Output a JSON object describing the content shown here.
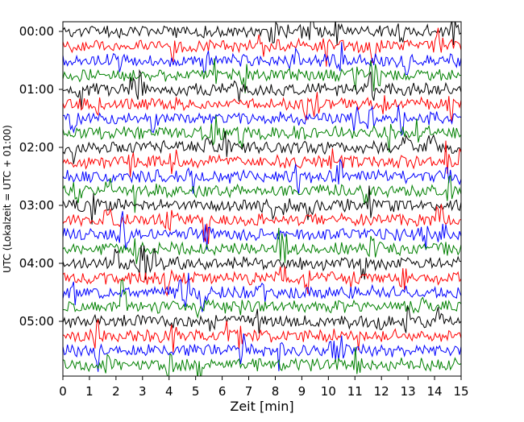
{
  "chart_data": {
    "type": "line",
    "title": "",
    "xlabel": "Zeit  [min]",
    "ylabel": "UTC (Lokalzeit = UTC + 01:00)",
    "xlim": [
      0,
      15
    ],
    "x_ticks": [
      0,
      1,
      2,
      3,
      4,
      5,
      6,
      7,
      8,
      9,
      10,
      11,
      12,
      13,
      14,
      15
    ],
    "y_ticks": [
      "00:00",
      "01:00",
      "02:00",
      "03:00",
      "04:00",
      "05:00"
    ],
    "trace_interval_minutes": 15,
    "trace_count": 24,
    "trace_colors": [
      "#000000",
      "#ff0000",
      "#0000ff",
      "#008000"
    ],
    "first_trace_start": "00:00",
    "last_trace_start": "05:45",
    "grid": false,
    "legend": "none"
  }
}
